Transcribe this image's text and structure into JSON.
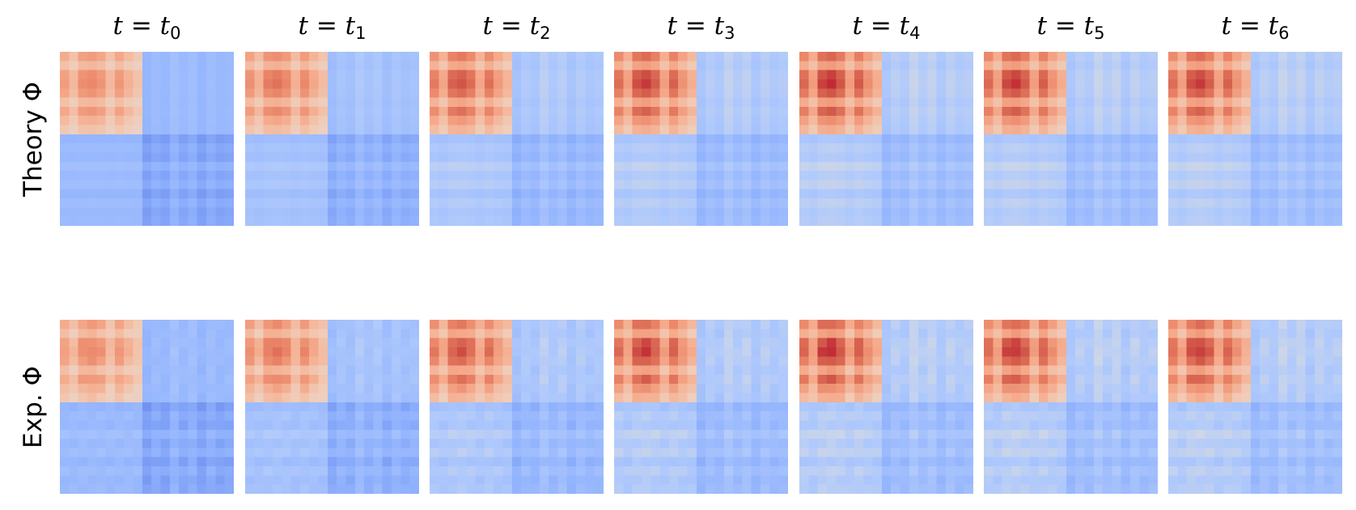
{
  "chart_data": {
    "type": "heatmap",
    "colormap": "coolwarm",
    "grid": false,
    "columns": [
      {
        "var": "t",
        "sub": "t",
        "index": "0"
      },
      {
        "var": "t",
        "sub": "t",
        "index": "1"
      },
      {
        "var": "t",
        "sub": "t",
        "index": "2"
      },
      {
        "var": "t",
        "sub": "t",
        "index": "3"
      },
      {
        "var": "t",
        "sub": "t",
        "index": "4"
      },
      {
        "var": "t",
        "sub": "t",
        "index": "5"
      },
      {
        "var": "t",
        "sub": "t",
        "index": "6"
      }
    ],
    "rows": [
      {
        "label": "Theory Φ"
      },
      {
        "label": "Exp. Φ"
      }
    ],
    "matrix_size": 19,
    "group_a_size": 9,
    "feature_profile": [
      0.78,
      0.5,
      0.92,
      0.98,
      0.86,
      0.5,
      0.84,
      0.58,
      0.4,
      0.34,
      0.58,
      0.44,
      0.76,
      0.52,
      0.7,
      0.38,
      0.64,
      0.46,
      0.54
    ],
    "intensity_by_column": [
      0.62,
      0.72,
      0.86,
      0.94,
      0.98,
      0.96,
      0.94
    ],
    "cross_block_level": [
      0.1,
      0.28,
      0.4,
      0.46,
      0.5,
      0.5,
      0.5
    ],
    "b_block_depth": [
      0.92,
      0.8,
      0.68,
      0.63,
      0.6,
      0.59,
      0.58
    ]
  }
}
